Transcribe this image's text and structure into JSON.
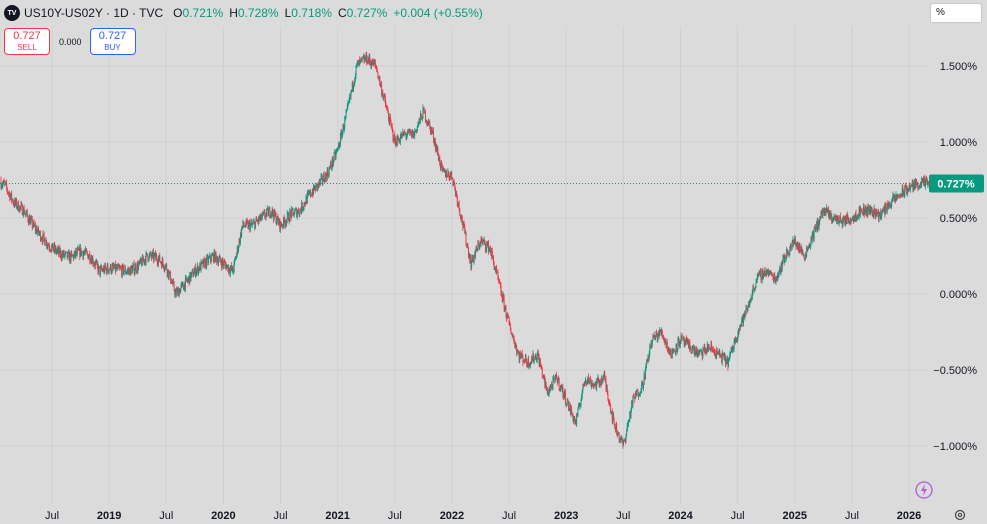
{
  "header": {
    "logo_text": "TV",
    "symbol": "US10Y-US02Y · 1D · TVC",
    "open_label": "O",
    "open": "0.721%",
    "high_label": "H",
    "high": "0.728%",
    "low_label": "L",
    "low": "0.718%",
    "close_label": "C",
    "close": "0.727%",
    "change": "+0.004 (+0.55%)"
  },
  "trade": {
    "sell_price": "0.727",
    "sell_label": "SELL",
    "spread": "0.000",
    "buy_price": "0.727",
    "buy_label": "BUY"
  },
  "unit_label": "%",
  "colors": {
    "up": "#089981",
    "down": "#f23645",
    "background": "#dbdbdb",
    "last_price": "#089981"
  },
  "chart_data": {
    "type": "candlestick",
    "y_unit": "%",
    "ylim": [
      -1.2,
      1.72
    ],
    "y_ticks": [
      1.5,
      1.0,
      0.5,
      0.0,
      -0.5,
      -1.0
    ],
    "y_tick_labels": [
      "1.500%",
      "1.000%",
      "0.500%",
      "0.000%",
      "−0.500%",
      "−1.000%"
    ],
    "x_tick_labels": [
      "Jul",
      "2019",
      "Jul",
      "2020",
      "Jul",
      "2021",
      "Jul",
      "2022",
      "Jul",
      "2023",
      "Jul",
      "2024",
      "Jul",
      "2025",
      "Jul",
      "2026"
    ],
    "x_tick_dates": [
      "2018-07",
      "2019-01",
      "2019-07",
      "2020-01",
      "2020-07",
      "2021-01",
      "2021-07",
      "2022-01",
      "2022-07",
      "2023-01",
      "2023-07",
      "2024-01",
      "2024-07",
      "2025-01",
      "2025-07",
      "2026-01"
    ],
    "x_range": [
      "2018-01",
      "2026-02"
    ],
    "last_price": 0.727,
    "last_price_label": "0.727%",
    "price_path": [
      [
        "2018-01",
        0.75
      ],
      [
        "2018-02",
        0.72
      ],
      [
        "2018-03",
        0.6
      ],
      [
        "2018-04",
        0.55
      ],
      [
        "2018-05",
        0.45
      ],
      [
        "2018-06",
        0.37
      ],
      [
        "2018-07",
        0.3
      ],
      [
        "2018-08",
        0.26
      ],
      [
        "2018-09",
        0.24
      ],
      [
        "2018-10",
        0.28
      ],
      [
        "2018-11",
        0.25
      ],
      [
        "2018-12",
        0.15
      ],
      [
        "2019-01",
        0.17
      ],
      [
        "2019-02",
        0.16
      ],
      [
        "2019-03",
        0.15
      ],
      [
        "2019-04",
        0.18
      ],
      [
        "2019-05",
        0.25
      ],
      [
        "2019-06",
        0.24
      ],
      [
        "2019-07",
        0.18
      ],
      [
        "2019-08",
        0.0
      ],
      [
        "2019-09",
        0.07
      ],
      [
        "2019-10",
        0.15
      ],
      [
        "2019-11",
        0.2
      ],
      [
        "2019-12",
        0.25
      ],
      [
        "2020-01",
        0.2
      ],
      [
        "2020-02",
        0.15
      ],
      [
        "2020-03",
        0.45
      ],
      [
        "2020-04",
        0.45
      ],
      [
        "2020-05",
        0.5
      ],
      [
        "2020-06",
        0.55
      ],
      [
        "2020-07",
        0.45
      ],
      [
        "2020-08",
        0.52
      ],
      [
        "2020-09",
        0.55
      ],
      [
        "2020-10",
        0.65
      ],
      [
        "2020-11",
        0.72
      ],
      [
        "2020-12",
        0.8
      ],
      [
        "2021-01",
        0.95
      ],
      [
        "2021-02",
        1.2
      ],
      [
        "2021-03",
        1.5
      ],
      [
        "2021-04",
        1.55
      ],
      [
        "2021-05",
        1.5
      ],
      [
        "2021-06",
        1.25
      ],
      [
        "2021-07",
        1.0
      ],
      [
        "2021-08",
        1.05
      ],
      [
        "2021-09",
        1.05
      ],
      [
        "2021-10",
        1.2
      ],
      [
        "2021-11",
        1.05
      ],
      [
        "2021-12",
        0.8
      ],
      [
        "2022-01",
        0.78
      ],
      [
        "2022-02",
        0.5
      ],
      [
        "2022-03",
        0.2
      ],
      [
        "2022-04",
        0.35
      ],
      [
        "2022-05",
        0.3
      ],
      [
        "2022-06",
        0.05
      ],
      [
        "2022-07",
        -0.2
      ],
      [
        "2022-08",
        -0.4
      ],
      [
        "2022-09",
        -0.45
      ],
      [
        "2022-10",
        -0.4
      ],
      [
        "2022-11",
        -0.65
      ],
      [
        "2022-12",
        -0.55
      ],
      [
        "2023-01",
        -0.7
      ],
      [
        "2023-02",
        -0.85
      ],
      [
        "2023-03",
        -0.55
      ],
      [
        "2023-04",
        -0.6
      ],
      [
        "2023-05",
        -0.55
      ],
      [
        "2023-06",
        -0.85
      ],
      [
        "2023-07",
        -1.0
      ],
      [
        "2023-08",
        -0.7
      ],
      [
        "2023-09",
        -0.6
      ],
      [
        "2023-10",
        -0.3
      ],
      [
        "2023-11",
        -0.25
      ],
      [
        "2023-12",
        -0.4
      ],
      [
        "2024-01",
        -0.3
      ],
      [
        "2024-02",
        -0.35
      ],
      [
        "2024-03",
        -0.4
      ],
      [
        "2024-04",
        -0.35
      ],
      [
        "2024-05",
        -0.4
      ],
      [
        "2024-06",
        -0.45
      ],
      [
        "2024-07",
        -0.25
      ],
      [
        "2024-08",
        -0.1
      ],
      [
        "2024-09",
        0.1
      ],
      [
        "2024-10",
        0.15
      ],
      [
        "2024-11",
        0.1
      ],
      [
        "2024-12",
        0.25
      ],
      [
        "2025-01",
        0.35
      ],
      [
        "2025-02",
        0.25
      ],
      [
        "2025-03",
        0.4
      ],
      [
        "2025-04",
        0.55
      ],
      [
        "2025-05",
        0.5
      ],
      [
        "2025-06",
        0.48
      ],
      [
        "2025-07",
        0.5
      ],
      [
        "2025-08",
        0.55
      ],
      [
        "2025-09",
        0.55
      ],
      [
        "2025-10",
        0.52
      ],
      [
        "2025-11",
        0.6
      ],
      [
        "2025-12",
        0.65
      ],
      [
        "2026-01",
        0.7
      ],
      [
        "2026-02",
        0.727
      ]
    ]
  }
}
